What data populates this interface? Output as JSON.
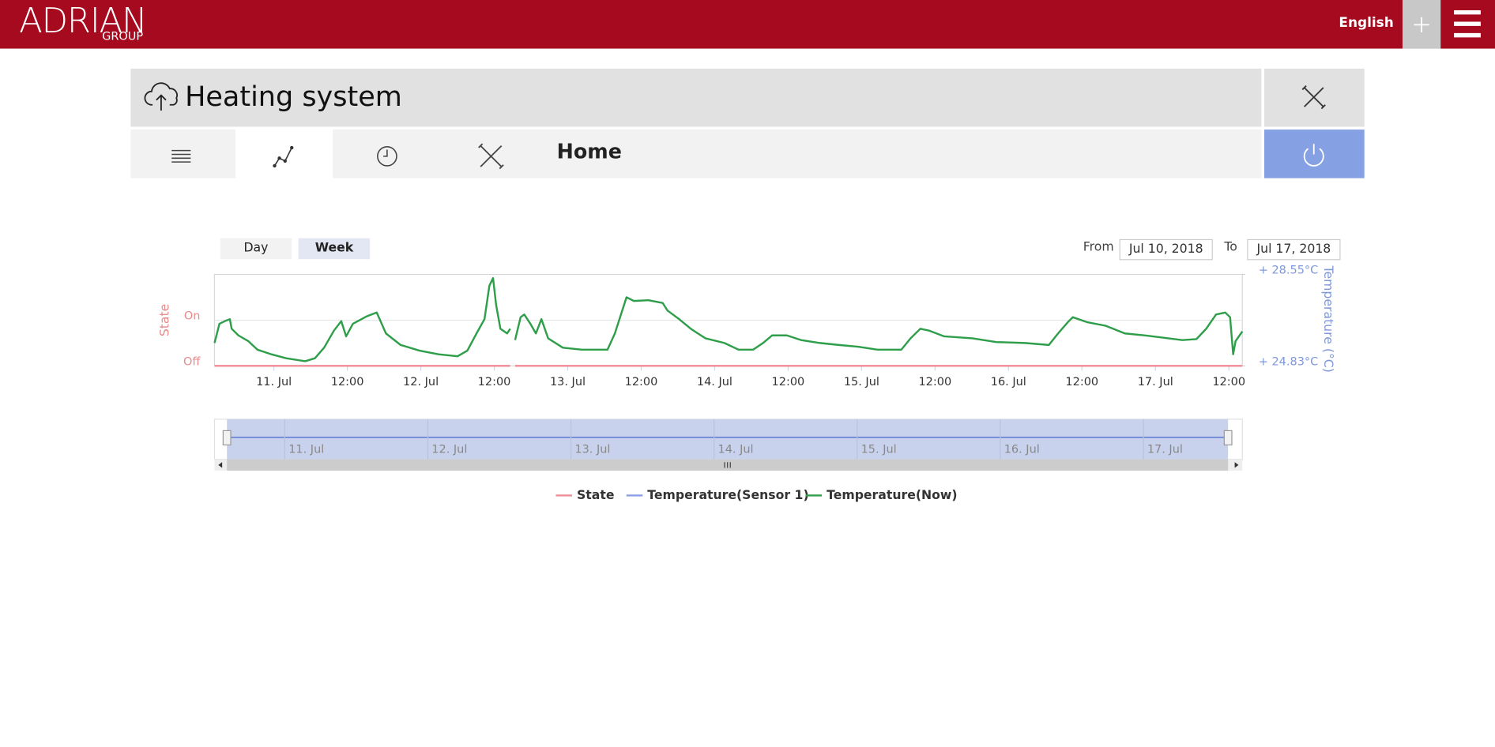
{
  "header": {
    "logo": "ADRIAN",
    "logo_sub": "GROUP",
    "language": "English"
  },
  "device": {
    "title": "Heating system",
    "section": "Home"
  },
  "range": {
    "buttons": [
      "Day",
      "Week"
    ],
    "from_label": "From",
    "from": "Jul 10, 2018",
    "to_label": "To",
    "to": "Jul 17, 2018"
  },
  "chart_data": {
    "type": "line",
    "ylabel": "State",
    "y2label": "Temperature (°C)",
    "xlim": [
      14.3,
      182.2
    ],
    "xticks": [
      {
        "value": 24,
        "label": "11. Jul"
      },
      {
        "value": 36,
        "label": "12:00"
      },
      {
        "value": 48,
        "label": "12. Jul"
      },
      {
        "value": 60,
        "label": "12:00"
      },
      {
        "value": 72,
        "label": "13. Jul"
      },
      {
        "value": 84,
        "label": "12:00"
      },
      {
        "value": 96,
        "label": "14. Jul"
      },
      {
        "value": 108,
        "label": "12:00"
      },
      {
        "value": 120,
        "label": "15. Jul"
      },
      {
        "value": 132,
        "label": "12:00"
      },
      {
        "value": 144,
        "label": "16. Jul"
      },
      {
        "value": 156,
        "label": "12:00"
      },
      {
        "value": 168,
        "label": "17. Jul"
      },
      {
        "value": 180,
        "label": "12:00"
      }
    ],
    "navigator_xticks": [
      {
        "value": 24,
        "label": "11. Jul"
      },
      {
        "value": 48,
        "label": "12. Jul"
      },
      {
        "value": 72,
        "label": "13. Jul"
      },
      {
        "value": 96,
        "label": "14. Jul"
      },
      {
        "value": 120,
        "label": "15. Jul"
      },
      {
        "value": 144,
        "label": "16. Jul"
      },
      {
        "value": 168,
        "label": "17. Jul"
      }
    ],
    "ylim": [
      0,
      2
    ],
    "yticks": [
      {
        "value": 0,
        "label": "Off"
      },
      {
        "value": 1,
        "label": "On"
      }
    ],
    "y2lim": [
      24.83,
      28.55
    ],
    "y2ticks": [
      {
        "value": 24.83,
        "label": "+ 24.83°C"
      },
      {
        "value": 28.55,
        "label": "+ 28.55°C"
      }
    ],
    "grid": true,
    "legend": "bottom",
    "x": [
      14.3,
      15.1,
      16.0,
      16.8,
      17.1,
      18.2,
      19.8,
      21.3,
      23.6,
      26.0,
      29.1,
      30.7,
      32.2,
      33.8,
      35.0,
      35.8,
      36.9,
      39.2,
      40.8,
      42.3,
      44.7,
      47.8,
      50.9,
      54.0,
      55.6,
      57.1,
      58.4,
      59.2,
      59.8,
      60.3,
      61.0,
      62.1,
      62.6,
      63.0,
      63.4,
      64.3,
      64.9,
      65.9,
      66.8,
      67.7,
      68.8,
      71.2,
      74.3,
      78.5,
      79.7,
      80.8,
      81.6,
      82.8,
      85.2,
      87.5,
      88.3,
      90.2,
      92.1,
      94.5,
      97.6,
      99.9,
      102.3,
      103.9,
      105.4,
      107.8,
      110.1,
      113.2,
      116.3,
      119.4,
      122.6,
      126.5,
      128.0,
      129.6,
      131.1,
      133.5,
      138.1,
      142.0,
      146.7,
      150.6,
      152.1,
      153.7,
      154.5,
      156.8,
      159.9,
      163.0,
      166.2,
      170.1,
      172.4,
      174.7,
      176.3,
      177.9,
      179.4,
      180.2,
      180.7,
      181.1,
      182.2
    ],
    "series": [
      {
        "name": "State",
        "color": "#f08c96",
        "axis": "y",
        "values": [
          0,
          0,
          0,
          0,
          0,
          0,
          0,
          0,
          0,
          0,
          0,
          0,
          0,
          0,
          0,
          0,
          0,
          0,
          0,
          0,
          0,
          0,
          0,
          0,
          0,
          0,
          0,
          0,
          0,
          0,
          0,
          0,
          0,
          null,
          0,
          0,
          0,
          0,
          0,
          0,
          0,
          0,
          0,
          0,
          0,
          0,
          0,
          0,
          0,
          0,
          0,
          0,
          0,
          0,
          0,
          0,
          0,
          0,
          0,
          0,
          0,
          0,
          0,
          0,
          0,
          0,
          0,
          0,
          0,
          0,
          0,
          0,
          0,
          0,
          0,
          0,
          0,
          0,
          0,
          0,
          0,
          0,
          0,
          0,
          0,
          0,
          0,
          0,
          0,
          0,
          0
        ]
      },
      {
        "name": "Temperature(Sensor 1)",
        "color": "#8c9fe6",
        "axis": "y2",
        "values": [
          null,
          null,
          null,
          null,
          null,
          null,
          null,
          null,
          null,
          null,
          null,
          null,
          null,
          null,
          null,
          null,
          null,
          null,
          null,
          null,
          null,
          null,
          null,
          null,
          null,
          null,
          null,
          null,
          null,
          null,
          null,
          null,
          null,
          null,
          null,
          null,
          null,
          null,
          null,
          null,
          null,
          null,
          null,
          null,
          null,
          null,
          null,
          null,
          null,
          null,
          null,
          null,
          null,
          null,
          null,
          null,
          null,
          null,
          null,
          null,
          null,
          null,
          null,
          null,
          null,
          null,
          null,
          null,
          null,
          null,
          null,
          null,
          null,
          null,
          null,
          null,
          null,
          null,
          null,
          null,
          null,
          null,
          null,
          null,
          null,
          null,
          null,
          null,
          null,
          null,
          null
        ]
      },
      {
        "name": "Temperature(Now)",
        "color": "#2e9e4a",
        "axis": "y2",
        "values": [
          25.76,
          26.54,
          26.65,
          26.73,
          26.34,
          26.07,
          25.84,
          25.49,
          25.3,
          25.14,
          25.02,
          25.14,
          25.57,
          26.26,
          26.65,
          26.03,
          26.54,
          26.85,
          27.0,
          26.15,
          25.68,
          25.45,
          25.3,
          25.22,
          25.45,
          26.15,
          26.73,
          28.09,
          28.4,
          27.31,
          26.34,
          26.15,
          26.34,
          null,
          25.88,
          26.81,
          26.92,
          26.54,
          26.15,
          26.73,
          25.95,
          25.57,
          25.49,
          25.49,
          26.15,
          27.0,
          27.62,
          27.47,
          27.5,
          27.39,
          27.08,
          26.73,
          26.34,
          25.95,
          25.76,
          25.49,
          25.49,
          25.76,
          26.07,
          26.07,
          25.88,
          25.76,
          25.68,
          25.61,
          25.49,
          25.49,
          25.95,
          26.34,
          26.26,
          26.03,
          25.95,
          25.8,
          25.76,
          25.68,
          26.15,
          26.61,
          26.81,
          26.61,
          26.46,
          26.15,
          26.07,
          25.95,
          25.88,
          25.92,
          26.34,
          26.92,
          27.0,
          26.81,
          25.3,
          25.84,
          26.23
        ]
      }
    ]
  }
}
